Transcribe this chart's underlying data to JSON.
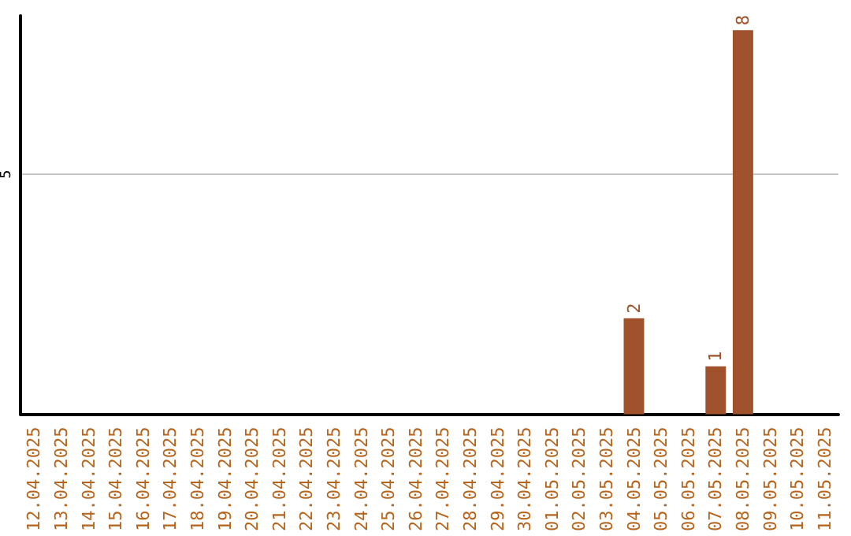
{
  "chart_data": {
    "type": "bar",
    "categories": [
      "12.04.2025",
      "13.04.2025",
      "14.04.2025",
      "15.04.2025",
      "16.04.2025",
      "17.04.2025",
      "18.04.2025",
      "19.04.2025",
      "20.04.2025",
      "21.04.2025",
      "22.04.2025",
      "23.04.2025",
      "24.04.2025",
      "25.04.2025",
      "26.04.2025",
      "27.04.2025",
      "28.04.2025",
      "29.04.2025",
      "30.04.2025",
      "01.05.2025",
      "02.05.2025",
      "03.05.2025",
      "04.05.2025",
      "05.05.2025",
      "06.05.2025",
      "07.05.2025",
      "08.05.2025",
      "09.05.2025",
      "10.05.2025",
      "11.05.2025"
    ],
    "values": [
      null,
      null,
      null,
      null,
      null,
      null,
      null,
      null,
      null,
      null,
      null,
      null,
      null,
      null,
      null,
      null,
      null,
      null,
      null,
      null,
      null,
      null,
      2,
      null,
      null,
      1,
      8,
      null,
      null,
      null
    ],
    "color": "#a0522d",
    "ylim": [
      0,
      8.3
    ],
    "yticks": [
      5
    ],
    "grid": "y",
    "data_labels": true
  }
}
